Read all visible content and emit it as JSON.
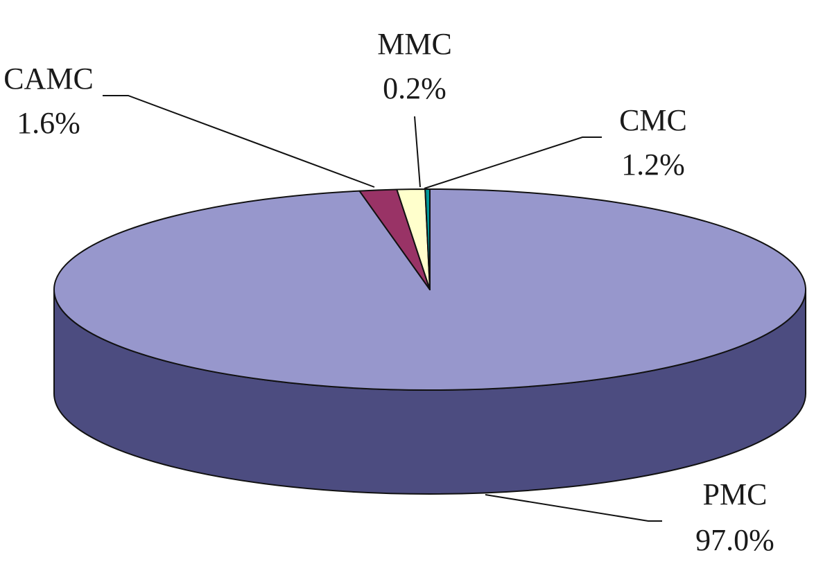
{
  "chart_data": {
    "type": "pie",
    "style": "3d",
    "slices": [
      {
        "label": "PMC",
        "value": 97.0,
        "value_label": "97.0%",
        "color": "#9797cc",
        "side_color": "#4c4c80"
      },
      {
        "label": "CAMC",
        "value": 1.6,
        "value_label": "1.6%",
        "color": "#993366",
        "side_color": "#5c1f3d"
      },
      {
        "label": "MMC",
        "value": 0.2,
        "value_label": "0.2%",
        "color": "#009999",
        "side_color": "#005c5c"
      },
      {
        "label": "CMC",
        "value": 1.2,
        "value_label": "1.2%",
        "color": "#ffffcc",
        "side_color": "#b3b38f"
      }
    ]
  }
}
